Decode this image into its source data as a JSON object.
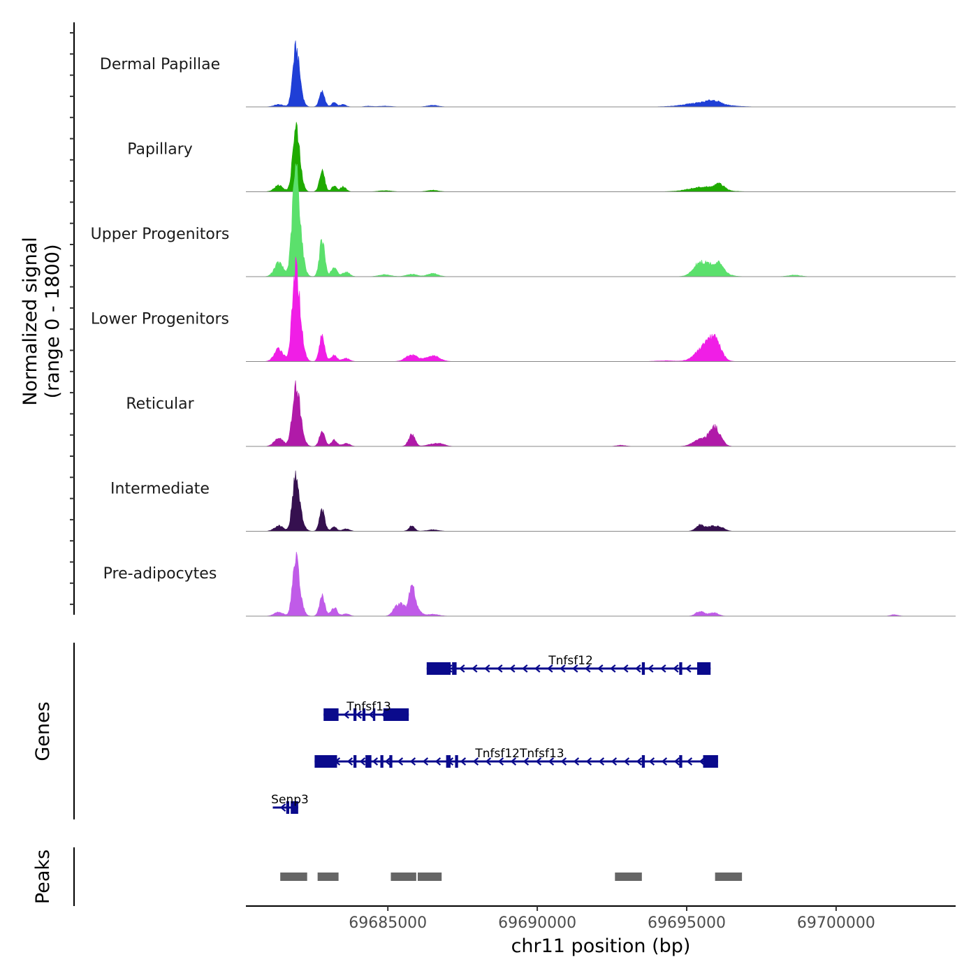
{
  "chart_data": {
    "type": "area",
    "title": "",
    "chromosome": "chr11",
    "xlabel": "chr11 position (bp)",
    "ylabel": "Normalized signal",
    "ylabel_range": "(range 0 - 1800)",
    "ylim": [
      0,
      1800
    ],
    "xlim": [
      69680250,
      69704000
    ],
    "x_ticks": [
      69685000,
      69690000,
      69695000,
      69700000
    ],
    "x_tick_labels": [
      "69685000",
      "69690000",
      "69695000",
      "69700000"
    ],
    "series": [
      {
        "name": "Dermal Papillae",
        "color": "#1f3fd6",
        "peaks": [
          [
            69681350,
            60,
            160
          ],
          [
            69681900,
            1000,
            100
          ],
          [
            69682000,
            620,
            120
          ],
          [
            69682800,
            380,
            90
          ],
          [
            69683200,
            110,
            80
          ],
          [
            69683500,
            60,
            100
          ],
          [
            69684350,
            20,
            120
          ],
          [
            69684900,
            20,
            200
          ],
          [
            69686500,
            40,
            180
          ],
          [
            69695600,
            110,
            600
          ],
          [
            69695900,
            70,
            200
          ]
        ]
      },
      {
        "name": "Papillary",
        "color": "#1faa00",
        "peaks": [
          [
            69681350,
            160,
            150
          ],
          [
            69681900,
            1100,
            100
          ],
          [
            69682000,
            650,
            120
          ],
          [
            69682800,
            520,
            90
          ],
          [
            69683200,
            150,
            80
          ],
          [
            69683500,
            130,
            100
          ],
          [
            69684900,
            30,
            200
          ],
          [
            69686500,
            40,
            180
          ],
          [
            69695600,
            120,
            500
          ],
          [
            69696100,
            130,
            150
          ]
        ]
      },
      {
        "name": "Upper Progenitors",
        "color": "#5be06c",
        "peaks": [
          [
            69681350,
            350,
            150
          ],
          [
            69681900,
            1800,
            110
          ],
          [
            69682000,
            1100,
            140
          ],
          [
            69682800,
            900,
            90
          ],
          [
            69683200,
            220,
            100
          ],
          [
            69683600,
            120,
            120
          ],
          [
            69684900,
            50,
            200
          ],
          [
            69685800,
            60,
            180
          ],
          [
            69686500,
            80,
            180
          ],
          [
            69695400,
            200,
            200
          ],
          [
            69695800,
            280,
            350
          ],
          [
            69696100,
            150,
            150
          ],
          [
            69698600,
            40,
            200
          ]
        ]
      },
      {
        "name": "Lower Progenitors",
        "color": "#f01ee6",
        "peaks": [
          [
            69681350,
            320,
            150
          ],
          [
            69681900,
            1500,
            110
          ],
          [
            69682000,
            1000,
            140
          ],
          [
            69682800,
            650,
            90
          ],
          [
            69683200,
            160,
            100
          ],
          [
            69683600,
            80,
            120
          ],
          [
            69685800,
            170,
            200
          ],
          [
            69686500,
            150,
            220
          ],
          [
            69695600,
            350,
            300
          ],
          [
            69695950,
            420,
            200
          ],
          [
            69694300,
            20,
            300
          ]
        ]
      },
      {
        "name": "Reticular",
        "color": "#b01aa8",
        "peaks": [
          [
            69681350,
            220,
            150
          ],
          [
            69681900,
            1000,
            110
          ],
          [
            69682000,
            700,
            140
          ],
          [
            69682800,
            380,
            90
          ],
          [
            69683200,
            160,
            100
          ],
          [
            69683600,
            80,
            120
          ],
          [
            69685800,
            300,
            110
          ],
          [
            69686500,
            60,
            200
          ],
          [
            69686800,
            50,
            150
          ],
          [
            69692800,
            30,
            150
          ],
          [
            69695500,
            200,
            250
          ],
          [
            69695900,
            380,
            150
          ],
          [
            69696100,
            160,
            150
          ]
        ]
      },
      {
        "name": "Intermediate",
        "color": "#35104f",
        "peaks": [
          [
            69681350,
            140,
            150
          ],
          [
            69681900,
            1000,
            100
          ],
          [
            69682000,
            500,
            140
          ],
          [
            69682800,
            520,
            90
          ],
          [
            69683200,
            110,
            90
          ],
          [
            69683600,
            60,
            120
          ],
          [
            69685800,
            130,
            100
          ],
          [
            69686500,
            40,
            180
          ],
          [
            69695450,
            170,
            140
          ],
          [
            69695850,
            120,
            150
          ],
          [
            69696150,
            90,
            140
          ]
        ]
      },
      {
        "name": "Pre-adipocytes",
        "color": "#c05be8",
        "peaks": [
          [
            69681350,
            100,
            150
          ],
          [
            69681900,
            1000,
            100
          ],
          [
            69682000,
            550,
            130
          ],
          [
            69682800,
            500,
            90
          ],
          [
            69683200,
            220,
            100
          ],
          [
            69683600,
            60,
            120
          ],
          [
            69685300,
            250,
            130
          ],
          [
            69685500,
            200,
            100
          ],
          [
            69685800,
            730,
            100
          ],
          [
            69686000,
            150,
            120
          ],
          [
            69686500,
            50,
            200
          ],
          [
            69695450,
            120,
            140
          ],
          [
            69695900,
            90,
            150
          ],
          [
            69701950,
            40,
            120
          ]
        ]
      }
    ],
    "genes": [
      {
        "name": "Tnfsf12",
        "start": 69686300,
        "end": 69695800,
        "strand": "-",
        "exons": [
          [
            69686300,
            69687100
          ],
          [
            69687150,
            69687300
          ],
          [
            69693500,
            69693600
          ],
          [
            69694750,
            69694850
          ],
          [
            69695350,
            69695800
          ]
        ]
      },
      {
        "name": "Tnfsf13",
        "start": 69682850,
        "end": 69685700,
        "strand": "-",
        "exons": [
          [
            69682850,
            69683350
          ],
          [
            69683850,
            69683950
          ],
          [
            69684150,
            69684250
          ],
          [
            69684500,
            69684580
          ],
          [
            69684850,
            69685700
          ]
        ]
      },
      {
        "name": "Tnfsf12Tnfsf13",
        "start": 69682550,
        "end": 69696050,
        "strand": "-",
        "exons": [
          [
            69682550,
            69683300
          ],
          [
            69683850,
            69683950
          ],
          [
            69684250,
            69684450
          ],
          [
            69684750,
            69684850
          ],
          [
            69685050,
            69685150
          ],
          [
            69686950,
            69687100
          ],
          [
            69687250,
            69687350
          ],
          [
            69693500,
            69693600
          ],
          [
            69694750,
            69694850
          ],
          [
            69695550,
            69696050
          ]
        ]
      },
      {
        "name": "Senp3",
        "start": 69681150,
        "end": 69682000,
        "strand": "-",
        "exons": [
          [
            69681600,
            69681700
          ],
          [
            69681750,
            69682000
          ]
        ]
      }
    ],
    "peaks_track": [
      [
        69681400,
        69682300
      ],
      [
        69682650,
        69683350
      ],
      [
        69685100,
        69685950
      ],
      [
        69686000,
        69686800
      ],
      [
        69692600,
        69693500
      ],
      [
        69695950,
        69696850
      ]
    ],
    "genes_label": "Genes",
    "peaks_label": "Peaks"
  }
}
